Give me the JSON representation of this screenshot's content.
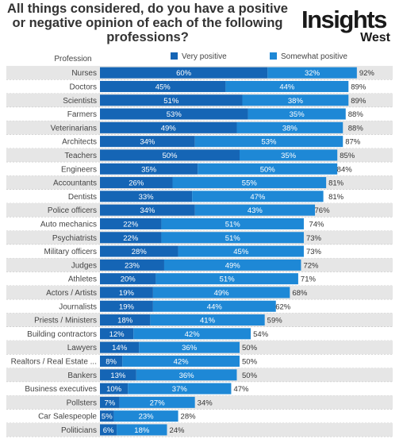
{
  "title_lines": [
    "All things considered, do you have a positive",
    "or negative opinion of each of the following",
    "professions?"
  ],
  "logo": {
    "main": "Insights",
    "sub": "West"
  },
  "colors": {
    "very": "#1565b5",
    "somewhat": "#1e88d6",
    "row_bg": "#e6e6e6",
    "separator": "#bbbbbb"
  },
  "chart_data": {
    "type": "bar",
    "orientation": "horizontal",
    "stacked": true,
    "category_header": "Profession",
    "legend": [
      "Very positive",
      "Somewhat positive"
    ],
    "legend_position": "top",
    "categories": [
      "Nurses",
      "Doctors",
      "Scientists",
      "Farmers",
      "Veterinarians",
      "Architects",
      "Teachers",
      "Engineers",
      "Accountants",
      "Dentists",
      "Police officers",
      "Auto mechanics",
      "Psychiatrists",
      "Military officers",
      "Judges",
      "Athletes",
      "Actors / Artists",
      "Journalists",
      "Priests / Ministers",
      "Building contractors",
      "Lawyers",
      "Realtors / Real Estate ...",
      "Bankers",
      "Business executives",
      "Pollsters",
      "Car Salespeople",
      "Politicians"
    ],
    "series": [
      {
        "name": "Very positive",
        "values": [
          60,
          45,
          51,
          53,
          49,
          34,
          50,
          35,
          26,
          33,
          34,
          22,
          22,
          28,
          23,
          20,
          19,
          19,
          18,
          12,
          14,
          8,
          13,
          10,
          7,
          5,
          6
        ]
      },
      {
        "name": "Somewhat positive",
        "values": [
          32,
          44,
          38,
          35,
          38,
          53,
          35,
          50,
          55,
          47,
          43,
          51,
          51,
          45,
          49,
          51,
          49,
          44,
          41,
          42,
          36,
          42,
          36,
          37,
          27,
          23,
          18
        ]
      }
    ],
    "totals": [
      92,
      89,
      89,
      88,
      88,
      87,
      85,
      84,
      81,
      81,
      76,
      74,
      73,
      73,
      72,
      71,
      68,
      62,
      59,
      54,
      50,
      50,
      50,
      47,
      34,
      28,
      24
    ],
    "xlim": [
      0,
      100
    ]
  }
}
